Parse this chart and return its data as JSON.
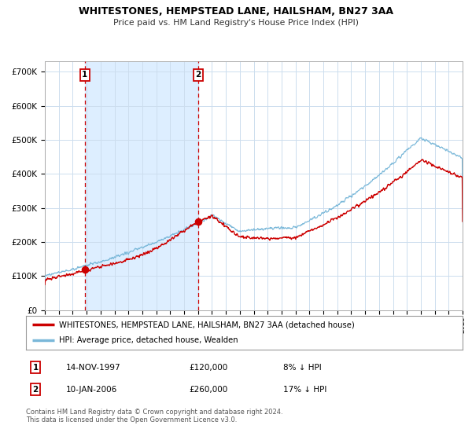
{
  "title": "WHITESTONES, HEMPSTEAD LANE, HAILSHAM, BN27 3AA",
  "subtitle": "Price paid vs. HM Land Registry's House Price Index (HPI)",
  "ylim": [
    0,
    730000
  ],
  "yticks": [
    0,
    100000,
    200000,
    300000,
    400000,
    500000,
    600000,
    700000
  ],
  "line_color_hpi": "#7ab8d9",
  "line_color_price": "#cc0000",
  "shade_color": "#ddeeff",
  "marker_color": "#cc0000",
  "vline_color": "#cc0000",
  "grid_color": "#ccddee",
  "bg_color": "#ffffff",
  "sale1_year": 1997.87,
  "sale1_price": 120000,
  "sale2_year": 2006.03,
  "sale2_price": 260000,
  "legend_label_price": "WHITESTONES, HEMPSTEAD LANE, HAILSHAM, BN27 3AA (detached house)",
  "legend_label_hpi": "HPI: Average price, detached house, Wealden",
  "footer": "Contains HM Land Registry data © Crown copyright and database right 2024.\nThis data is licensed under the Open Government Licence v3.0.",
  "xmin": 1995,
  "xmax": 2025
}
